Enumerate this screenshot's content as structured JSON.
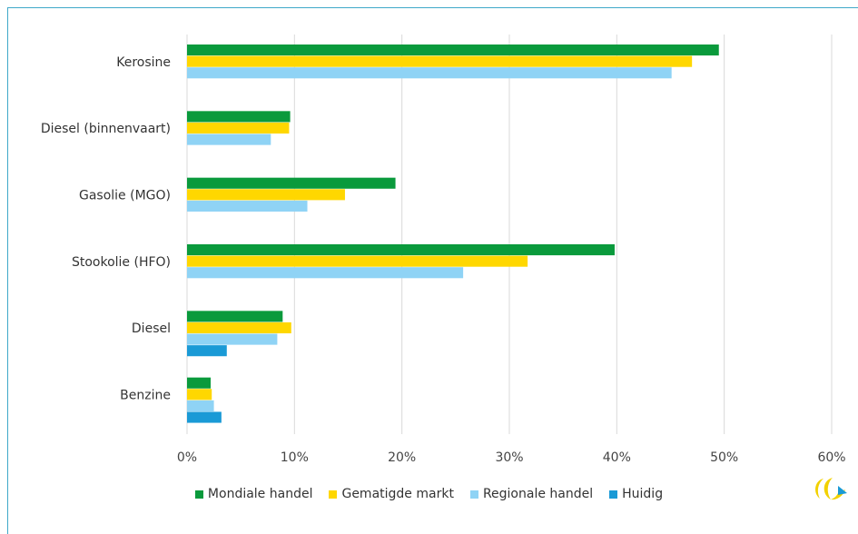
{
  "chart_data": {
    "type": "bar",
    "orientation": "horizontal",
    "categories": [
      "Kerosine",
      "Diesel (binnenvaart)",
      "Gasolie (MGO)",
      "Stookolie (HFO)",
      "Diesel",
      "Benzine"
    ],
    "series": [
      {
        "name": "Mondiale handel",
        "color": "#0a9a3c",
        "values": [
          49.5,
          9.6,
          19.4,
          39.8,
          8.9,
          2.2
        ]
      },
      {
        "name": "Gematigde markt",
        "color": "#ffd700",
        "values": [
          47.0,
          9.5,
          14.7,
          31.7,
          9.7,
          2.3
        ]
      },
      {
        "name": "Regionale handel",
        "color": "#8fd3f5",
        "values": [
          45.1,
          7.8,
          11.2,
          25.7,
          8.4,
          2.5
        ]
      },
      {
        "name": "Huidig",
        "color": "#1a9ad6",
        "values": [
          null,
          null,
          null,
          null,
          3.7,
          3.2
        ]
      }
    ],
    "xlim": [
      0,
      60
    ],
    "xticks": [
      "0%",
      "10%",
      "20%",
      "30%",
      "40%",
      "50%",
      "60%"
    ],
    "grid": true,
    "legend": "bottom"
  }
}
